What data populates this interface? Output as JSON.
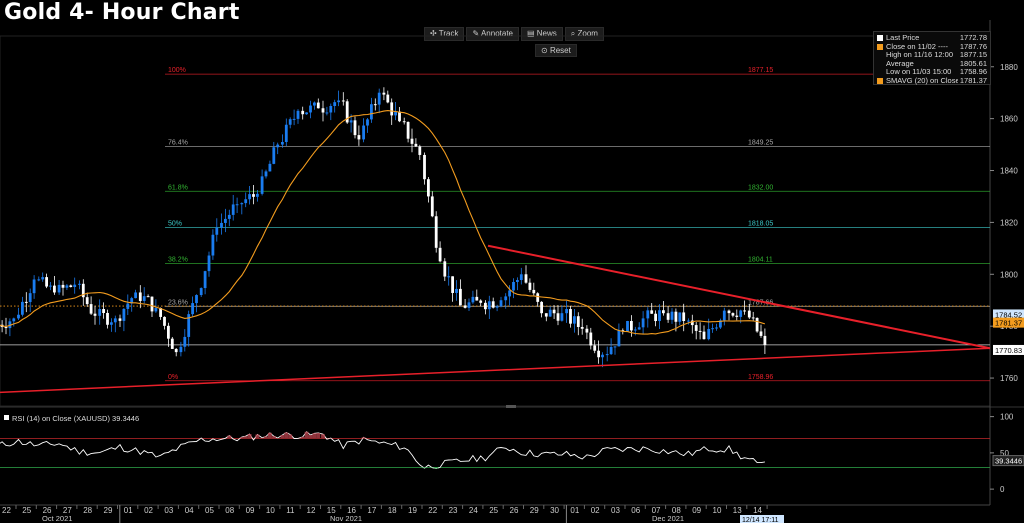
{
  "title": "Gold 4- Hour Chart",
  "toolbar": {
    "track": "Track",
    "annotate": "Annotate",
    "news": "News",
    "zoom": "Zoom",
    "reset": "Reset"
  },
  "legend": [
    {
      "label": "Last Price",
      "value": "1772.78",
      "swatch": "white"
    },
    {
      "label": "Close on 11/02 ----",
      "value": "1787.76",
      "swatch": "orange"
    },
    {
      "label": "High on 11/16 12:00",
      "value": "1877.15",
      "swatch": "blank"
    },
    {
      "label": "Average",
      "value": "1805.61",
      "swatch": "blank"
    },
    {
      "label": "Low on 11/03 15:00",
      "value": "1758.96",
      "swatch": "blank"
    },
    {
      "label": "SMAVG (20) on Close",
      "value": "1781.37",
      "swatch": "orange"
    }
  ],
  "colors": {
    "bull": "#1a7cf0",
    "bear": "#ffffff",
    "sma": "#f39c1e",
    "trend": "#e8202a",
    "dotted": "#f39c1e",
    "fib": [
      "#e8202a",
      "#a8a8a8",
      "#32b432",
      "#3cc8c8",
      "#32b432",
      "#a8a8a8",
      "#e8202a"
    ]
  },
  "chart_data": {
    "type": "candlestick",
    "y_axis": {
      "ticks": [
        1760,
        1780,
        1800,
        1820,
        1840,
        1860,
        1880
      ],
      "range": [
        1750,
        1888
      ]
    },
    "fibonacci": [
      {
        "pct": "100%",
        "value": 1877.15
      },
      {
        "pct": "76.4%",
        "value": 1849.25
      },
      {
        "pct": "61.8%",
        "value": 1832.0
      },
      {
        "pct": "50%",
        "value": 1818.05
      },
      {
        "pct": "38.2%",
        "value": 1804.11
      },
      {
        "pct": "23.6%",
        "value": null
      },
      {
        "pct": "0%",
        "value": 1758.96
      }
    ],
    "fib_value_labels": [
      "1877.15",
      "1849.25",
      "1832.00",
      "1818.05",
      "1804.11",
      "1787.66",
      "1758.96"
    ],
    "price_tags": {
      "sma": "1781.37",
      "last": "1772.78",
      "upper": "1784.52",
      "lower": "1770.83"
    },
    "dates": [
      "22",
      "25",
      "26",
      "27",
      "28",
      "29",
      "01",
      "02",
      "03",
      "04",
      "05",
      "08",
      "09",
      "10",
      "11",
      "12",
      "15",
      "16",
      "17",
      "18",
      "19",
      "22",
      "23",
      "24",
      "25",
      "26",
      "29",
      "30",
      "01",
      "02",
      "03",
      "06",
      "07",
      "08",
      "09",
      "10",
      "13",
      "14"
    ],
    "months": [
      "Oct 2021",
      "Nov 2021",
      "Dec 2021"
    ],
    "current_date_tag": "12/14 17:11",
    "daily_close": [
      1783,
      1798,
      1793,
      1796,
      1784,
      1783,
      1793,
      1787,
      1770,
      1792,
      1818,
      1827,
      1831,
      1850,
      1863,
      1864,
      1867,
      1852,
      1870,
      1859,
      1846,
      1805,
      1788,
      1789,
      1790,
      1800,
      1785,
      1785,
      1779,
      1769,
      1778,
      1783,
      1785,
      1782,
      1775,
      1786,
      1786,
      1772.78
    ],
    "rsi": {
      "label": "RSI (14)  on Close (XAUUSD) 39.3446",
      "value": "39.3446",
      "ticks": [
        0,
        50,
        100
      ],
      "overbought": 70,
      "oversold": 30,
      "daily": [
        60,
        66,
        60,
        63,
        52,
        50,
        58,
        52,
        44,
        58,
        68,
        70,
        70,
        74,
        75,
        74,
        76,
        60,
        68,
        63,
        58,
        30,
        35,
        40,
        44,
        58,
        50,
        48,
        48,
        44,
        54,
        55,
        56,
        52,
        48,
        56,
        55,
        39.3446
      ]
    }
  }
}
